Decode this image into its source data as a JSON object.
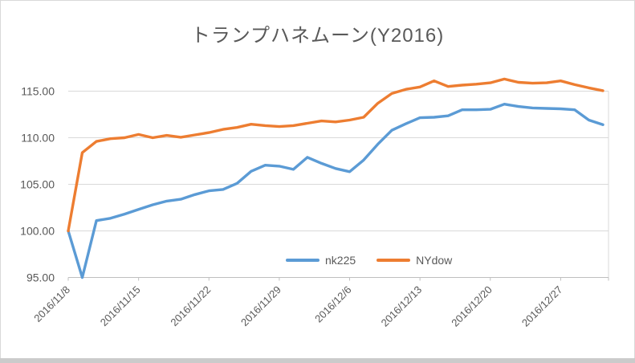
{
  "window": {
    "bottom_bar_color": "#CBCBCB",
    "frame_color": "#D9D9D9"
  },
  "chart_data": {
    "type": "line",
    "title": "トランプハネムーン(Y2016)",
    "xlabel": "",
    "ylabel": "",
    "grid": "horizontal",
    "legend_position": "bottom-center",
    "text_color": "#595959",
    "grid_color": "#D9D9D9",
    "axis_color": "#BFBFBF",
    "ylim": [
      95,
      117.5
    ],
    "y_ticks": {
      "values": [
        115,
        110,
        105,
        100,
        95
      ],
      "labels": [
        "115.00",
        "110.00",
        "105.00",
        "100.00",
        "95.00"
      ]
    },
    "x": [
      "2016/11/8",
      "2016/11/9",
      "2016/11/10",
      "2016/11/11",
      "2016/11/14",
      "2016/11/15",
      "2016/11/16",
      "2016/11/17",
      "2016/11/18",
      "2016/11/21",
      "2016/11/22",
      "2016/11/23",
      "2016/11/24",
      "2016/11/25",
      "2016/11/28",
      "2016/11/29",
      "2016/11/30",
      "2016/12/1",
      "2016/12/2",
      "2016/12/5",
      "2016/12/6",
      "2016/12/7",
      "2016/12/8",
      "2016/12/9",
      "2016/12/12",
      "2016/12/13",
      "2016/12/14",
      "2016/12/15",
      "2016/12/16",
      "2016/12/19",
      "2016/12/20",
      "2016/12/21",
      "2016/12/22",
      "2016/12/23",
      "2016/12/26",
      "2016/12/27",
      "2016/12/28",
      "2016/12/29",
      "2016/12/30"
    ],
    "x_tick_labels": [
      "2016/11/8",
      "2016/11/15",
      "2016/11/22",
      "2016/11/29",
      "2016/12/6",
      "2016/12/13",
      "2016/12/20",
      "2016/12/27"
    ],
    "x_tick_every": 5,
    "series": [
      {
        "name": "nk225",
        "color": "#5B9BD5",
        "values": [
          100.0,
          95.0,
          101.1,
          101.35,
          101.8,
          102.3,
          102.8,
          103.2,
          103.4,
          103.9,
          104.3,
          104.45,
          105.1,
          106.4,
          107.05,
          106.95,
          106.6,
          107.9,
          107.25,
          106.7,
          106.35,
          107.6,
          109.3,
          110.8,
          111.5,
          112.15,
          112.2,
          112.35,
          113.0,
          113.0,
          113.05,
          113.6,
          113.35,
          113.2,
          113.15,
          113.1,
          113.0,
          111.9,
          111.4
        ]
      },
      {
        "name": "NYdow",
        "color": "#ED7D31",
        "values": [
          100.0,
          108.4,
          109.6,
          109.9,
          110.0,
          110.35,
          110.0,
          110.25,
          110.05,
          110.3,
          110.55,
          110.9,
          111.1,
          111.45,
          111.3,
          111.2,
          111.3,
          111.55,
          111.8,
          111.7,
          111.9,
          112.2,
          113.7,
          114.75,
          115.2,
          115.45,
          116.1,
          115.5,
          115.65,
          115.75,
          115.9,
          116.3,
          115.95,
          115.85,
          115.9,
          116.1,
          115.7,
          115.35,
          115.05
        ]
      }
    ]
  }
}
